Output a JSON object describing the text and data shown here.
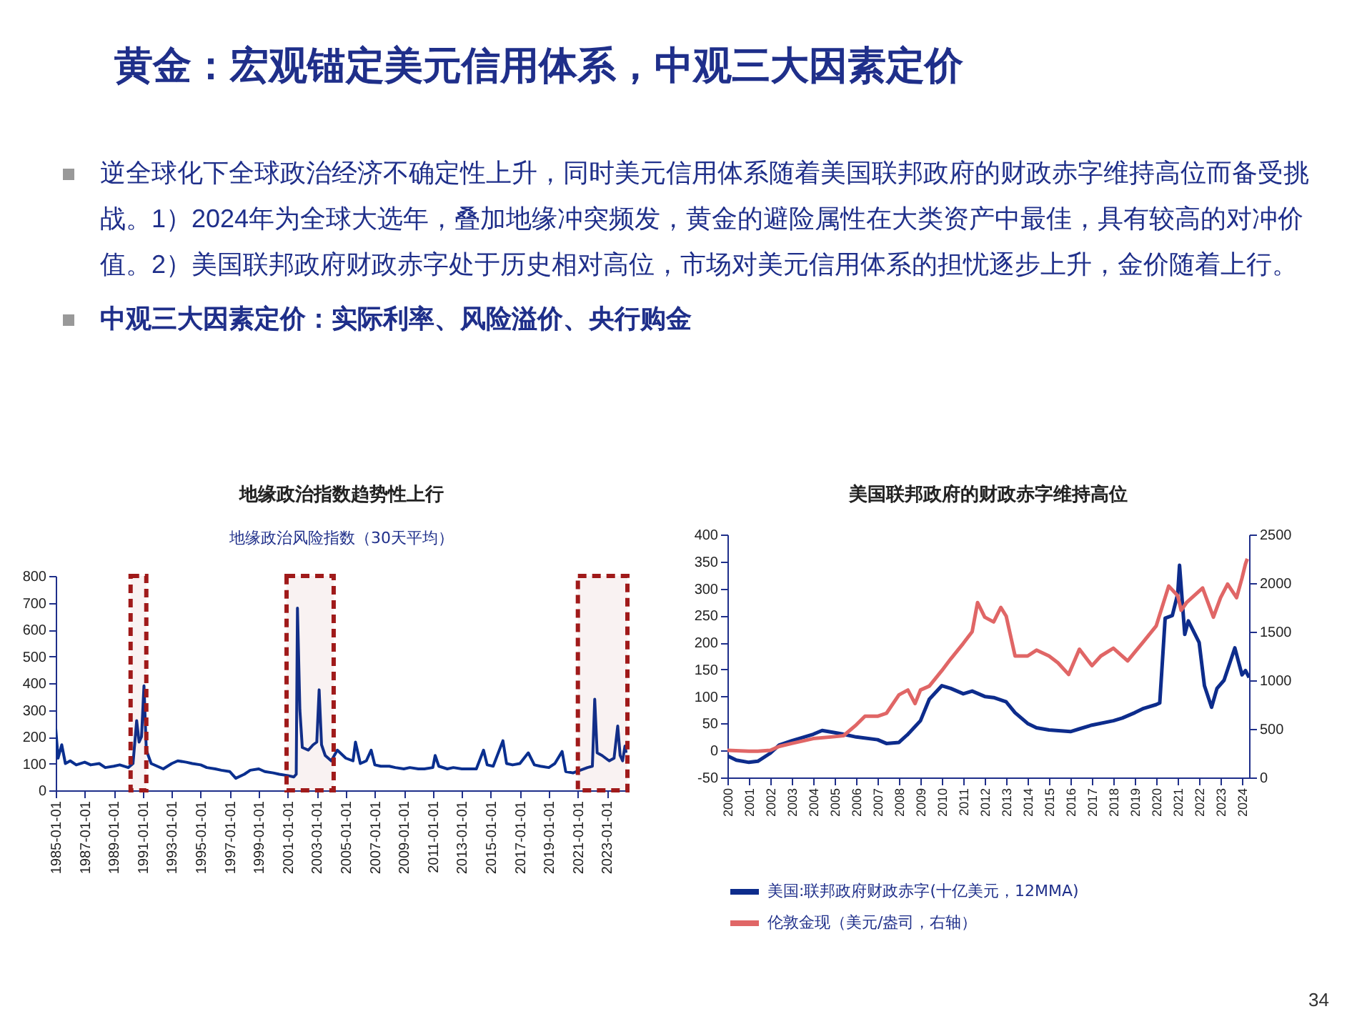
{
  "chart_data": [
    {
      "type": "other",
      "title": "黄金：宏观锚定美元信用体系，中观三大因素定价",
      "annotations": [
        "逆全球化下全球政治经济不确定性上升，同时美元信用体系随着美国联邦政府的财政赤字维持高位而备受挑战。1）2024年为全球大选年，叠加地缘冲突频发，黄金的避险属性在大类资产中最佳，具有较高的对冲价值。2）美国联邦政府财政赤字处于历史相对高位，市场对美元信用体系的担忧逐步上升，金价随着上行。",
        "中观三大因素定价：实际利率、风险溢价、央行购金",
        "34"
      ]
    },
    {
      "type": "line",
      "title": "地缘政治指数趋势性上行",
      "subtitle": "地缘政治风险指数（30天平均）",
      "x": [
        "1985-01",
        "1985-03",
        "1985-06",
        "1985-09",
        "1986-01",
        "1986-06",
        "1987-01",
        "1987-06",
        "1988-01",
        "1988-06",
        "1989-01",
        "1989-06",
        "1990-01",
        "1990-05",
        "1990-08",
        "1990-10",
        "1990-12",
        "1991-02",
        "1991-04",
        "1991-08",
        "1992-01",
        "1992-06",
        "1993-01",
        "1993-06",
        "1994-01",
        "1994-06",
        "1995-01",
        "1995-06",
        "1996-01",
        "1996-06",
        "1997-01",
        "1997-06",
        "1998-01",
        "1998-06",
        "1999-01",
        "1999-06",
        "2000-01",
        "2000-06",
        "2001-01",
        "2001-06",
        "2001-08",
        "2001-09",
        "2001-11",
        "2002-01",
        "2002-06",
        "2002-10",
        "2003-01",
        "2003-03",
        "2003-05",
        "2003-08",
        "2004-01",
        "2004-06",
        "2005-01",
        "2005-07",
        "2005-09",
        "2006-01",
        "2006-06",
        "2006-10",
        "2007-01",
        "2007-06",
        "2008-01",
        "2008-06",
        "2009-01",
        "2009-06",
        "2010-01",
        "2010-06",
        "2011-01",
        "2011-03",
        "2011-06",
        "2012-01",
        "2012-06",
        "2013-01",
        "2013-06",
        "2014-01",
        "2014-07",
        "2014-10",
        "2015-03",
        "2015-11",
        "2016-02",
        "2016-07",
        "2017-01",
        "2017-08",
        "2018-01",
        "2018-06",
        "2019-01",
        "2019-06",
        "2019-12",
        "2020-03",
        "2020-09",
        "2021-03",
        "2021-09",
        "2022-01",
        "2022-03",
        "2022-05",
        "2022-09",
        "2023-03",
        "2023-07",
        "2023-10",
        "2023-12",
        "2024-02",
        "2024-04",
        "2024-05"
      ],
      "series": [
        {
          "color": "#0a2f8f",
          "values": [
            230,
            120,
            170,
            100,
            110,
            95,
            105,
            95,
            100,
            85,
            90,
            95,
            85,
            100,
            260,
            180,
            200,
            390,
            150,
            100,
            90,
            80,
            100,
            110,
            105,
            100,
            95,
            85,
            80,
            75,
            70,
            45,
            60,
            75,
            80,
            70,
            65,
            60,
            55,
            50,
            60,
            680,
            300,
            160,
            150,
            170,
            180,
            375,
            170,
            130,
            110,
            150,
            120,
            110,
            180,
            100,
            110,
            150,
            95,
            90,
            90,
            85,
            80,
            85,
            80,
            80,
            85,
            130,
            90,
            80,
            85,
            80,
            80,
            80,
            150,
            95,
            90,
            185,
            100,
            95,
            100,
            140,
            95,
            90,
            85,
            100,
            145,
            70,
            65,
            75,
            85,
            90,
            340,
            140,
            130,
            110,
            120,
            240,
            130,
            110,
            165,
            140
          ]
        }
      ],
      "xlim": [
        "1985-01",
        "2024-06"
      ],
      "xticks": [
        "1985-01-01",
        "1987-01-01",
        "1989-01-01",
        "1991-01-01",
        "1993-01-01",
        "1995-01-01",
        "1997-01-01",
        "1999-01-01",
        "2001-01-01",
        "2003-01-01",
        "2005-01-01",
        "2007-01-01",
        "2009-01-01",
        "2011-01-01",
        "2013-01-01",
        "2015-01-01",
        "2017-01-01",
        "2019-01-01",
        "2021-01-01",
        "2023-01-01"
      ],
      "ylim": [
        0,
        800
      ],
      "yticks": [
        0,
        100,
        200,
        300,
        400,
        500,
        600,
        700,
        800
      ],
      "bands": [
        {
          "axis": "x",
          "from": "1990-03",
          "to": "1991-04",
          "color": "#a01a1a"
        },
        {
          "axis": "x",
          "from": "2000-12",
          "to": "2004-03",
          "color": "#a01a1a"
        },
        {
          "axis": "x",
          "from": "2021-01",
          "to": "2024-06",
          "color": "#a01a1a"
        }
      ]
    },
    {
      "type": "line",
      "title": "美国联邦政府的财政赤字维持高位",
      "legend": "bottom",
      "series": [
        {
          "name": "美国:联邦政府财政赤字(十亿美元，12MMA)",
          "color": "#0d2c8c",
          "x": [
            "2000-01",
            "2000-06",
            "2001-01",
            "2001-06",
            "2002-01",
            "2002-06",
            "2003-01",
            "2004-01",
            "2004-06",
            "2005-01",
            "2005-06",
            "2006-01",
            "2007-01",
            "2007-06",
            "2008-01",
            "2008-06",
            "2009-01",
            "2009-06",
            "2010-01",
            "2010-06",
            "2011-01",
            "2011-06",
            "2012-01",
            "2012-06",
            "2013-01",
            "2013-06",
            "2014-01",
            "2014-06",
            "2015-01",
            "2016-01",
            "2016-06",
            "2017-01",
            "2018-01",
            "2018-06",
            "2019-01",
            "2019-06",
            "2020-01",
            "2020-03",
            "2020-06",
            "2020-10",
            "2021-01",
            "2021-02",
            "2021-05",
            "2021-07",
            "2022-01",
            "2022-04",
            "2022-08",
            "2022-11",
            "2023-03",
            "2023-09",
            "2024-01",
            "2024-03",
            "2024-05"
          ],
          "values": [
            -10,
            -18,
            -22,
            -20,
            -5,
            10,
            18,
            30,
            37,
            33,
            30,
            25,
            20,
            13,
            15,
            30,
            55,
            95,
            120,
            115,
            105,
            110,
            100,
            98,
            90,
            70,
            50,
            42,
            38,
            35,
            40,
            47,
            55,
            60,
            70,
            78,
            85,
            88,
            245,
            250,
            290,
            343,
            215,
            240,
            200,
            120,
            80,
            115,
            130,
            190,
            140,
            148,
            135
          ]
        },
        {
          "name": "伦敦金现（美元/盎司，右轴）",
          "color": "#e06666",
          "axis": "y2",
          "x": [
            "2000-01",
            "2001-01",
            "2001-06",
            "2002-01",
            "2002-06",
            "2003-01",
            "2004-01",
            "2005-01",
            "2005-06",
            "2006-01",
            "2006-06",
            "2007-01",
            "2007-06",
            "2008-01",
            "2008-06",
            "2008-10",
            "2009-01",
            "2009-06",
            "2010-01",
            "2010-06",
            "2011-01",
            "2011-06",
            "2011-09",
            "2012-01",
            "2012-06",
            "2012-10",
            "2013-01",
            "2013-06",
            "2014-01",
            "2014-06",
            "2015-01",
            "2015-06",
            "2015-12",
            "2016-06",
            "2017-01",
            "2017-06",
            "2018-01",
            "2018-09",
            "2019-01",
            "2019-06",
            "2020-01",
            "2020-08",
            "2021-01",
            "2021-03",
            "2021-06",
            "2022-03",
            "2022-09",
            "2023-01",
            "2023-05",
            "2023-10",
            "2024-01",
            "2024-03",
            "2024-04"
          ],
          "values": [
            280,
            270,
            270,
            280,
            320,
            350,
            400,
            420,
            430,
            540,
            630,
            630,
            660,
            850,
            900,
            760,
            900,
            940,
            1100,
            1220,
            1380,
            1500,
            1800,
            1650,
            1600,
            1750,
            1660,
            1250,
            1250,
            1310,
            1250,
            1180,
            1060,
            1320,
            1150,
            1250,
            1330,
            1200,
            1290,
            1400,
            1560,
            1970,
            1870,
            1720,
            1800,
            1950,
            1650,
            1850,
            1990,
            1850,
            2050,
            2200,
            2250
          ]
        }
      ],
      "xlim": [
        "2000-01",
        "2024-05"
      ],
      "xticks": [
        "2000",
        "2001",
        "2002",
        "2003",
        "2004",
        "2005",
        "2006",
        "2007",
        "2008",
        "2009",
        "2010",
        "2011",
        "2012",
        "2013",
        "2014",
        "2015",
        "2016",
        "2017",
        "2018",
        "2019",
        "2020",
        "2021",
        "2022",
        "2023",
        "2024"
      ],
      "ylim": [
        -50,
        400
      ],
      "yticks": [
        -50,
        0,
        50,
        100,
        150,
        200,
        250,
        300,
        350,
        400
      ],
      "y2lim": [
        0,
        2500
      ],
      "y2ticks": [
        0,
        500,
        1000,
        1500,
        2000,
        2500
      ]
    }
  ]
}
